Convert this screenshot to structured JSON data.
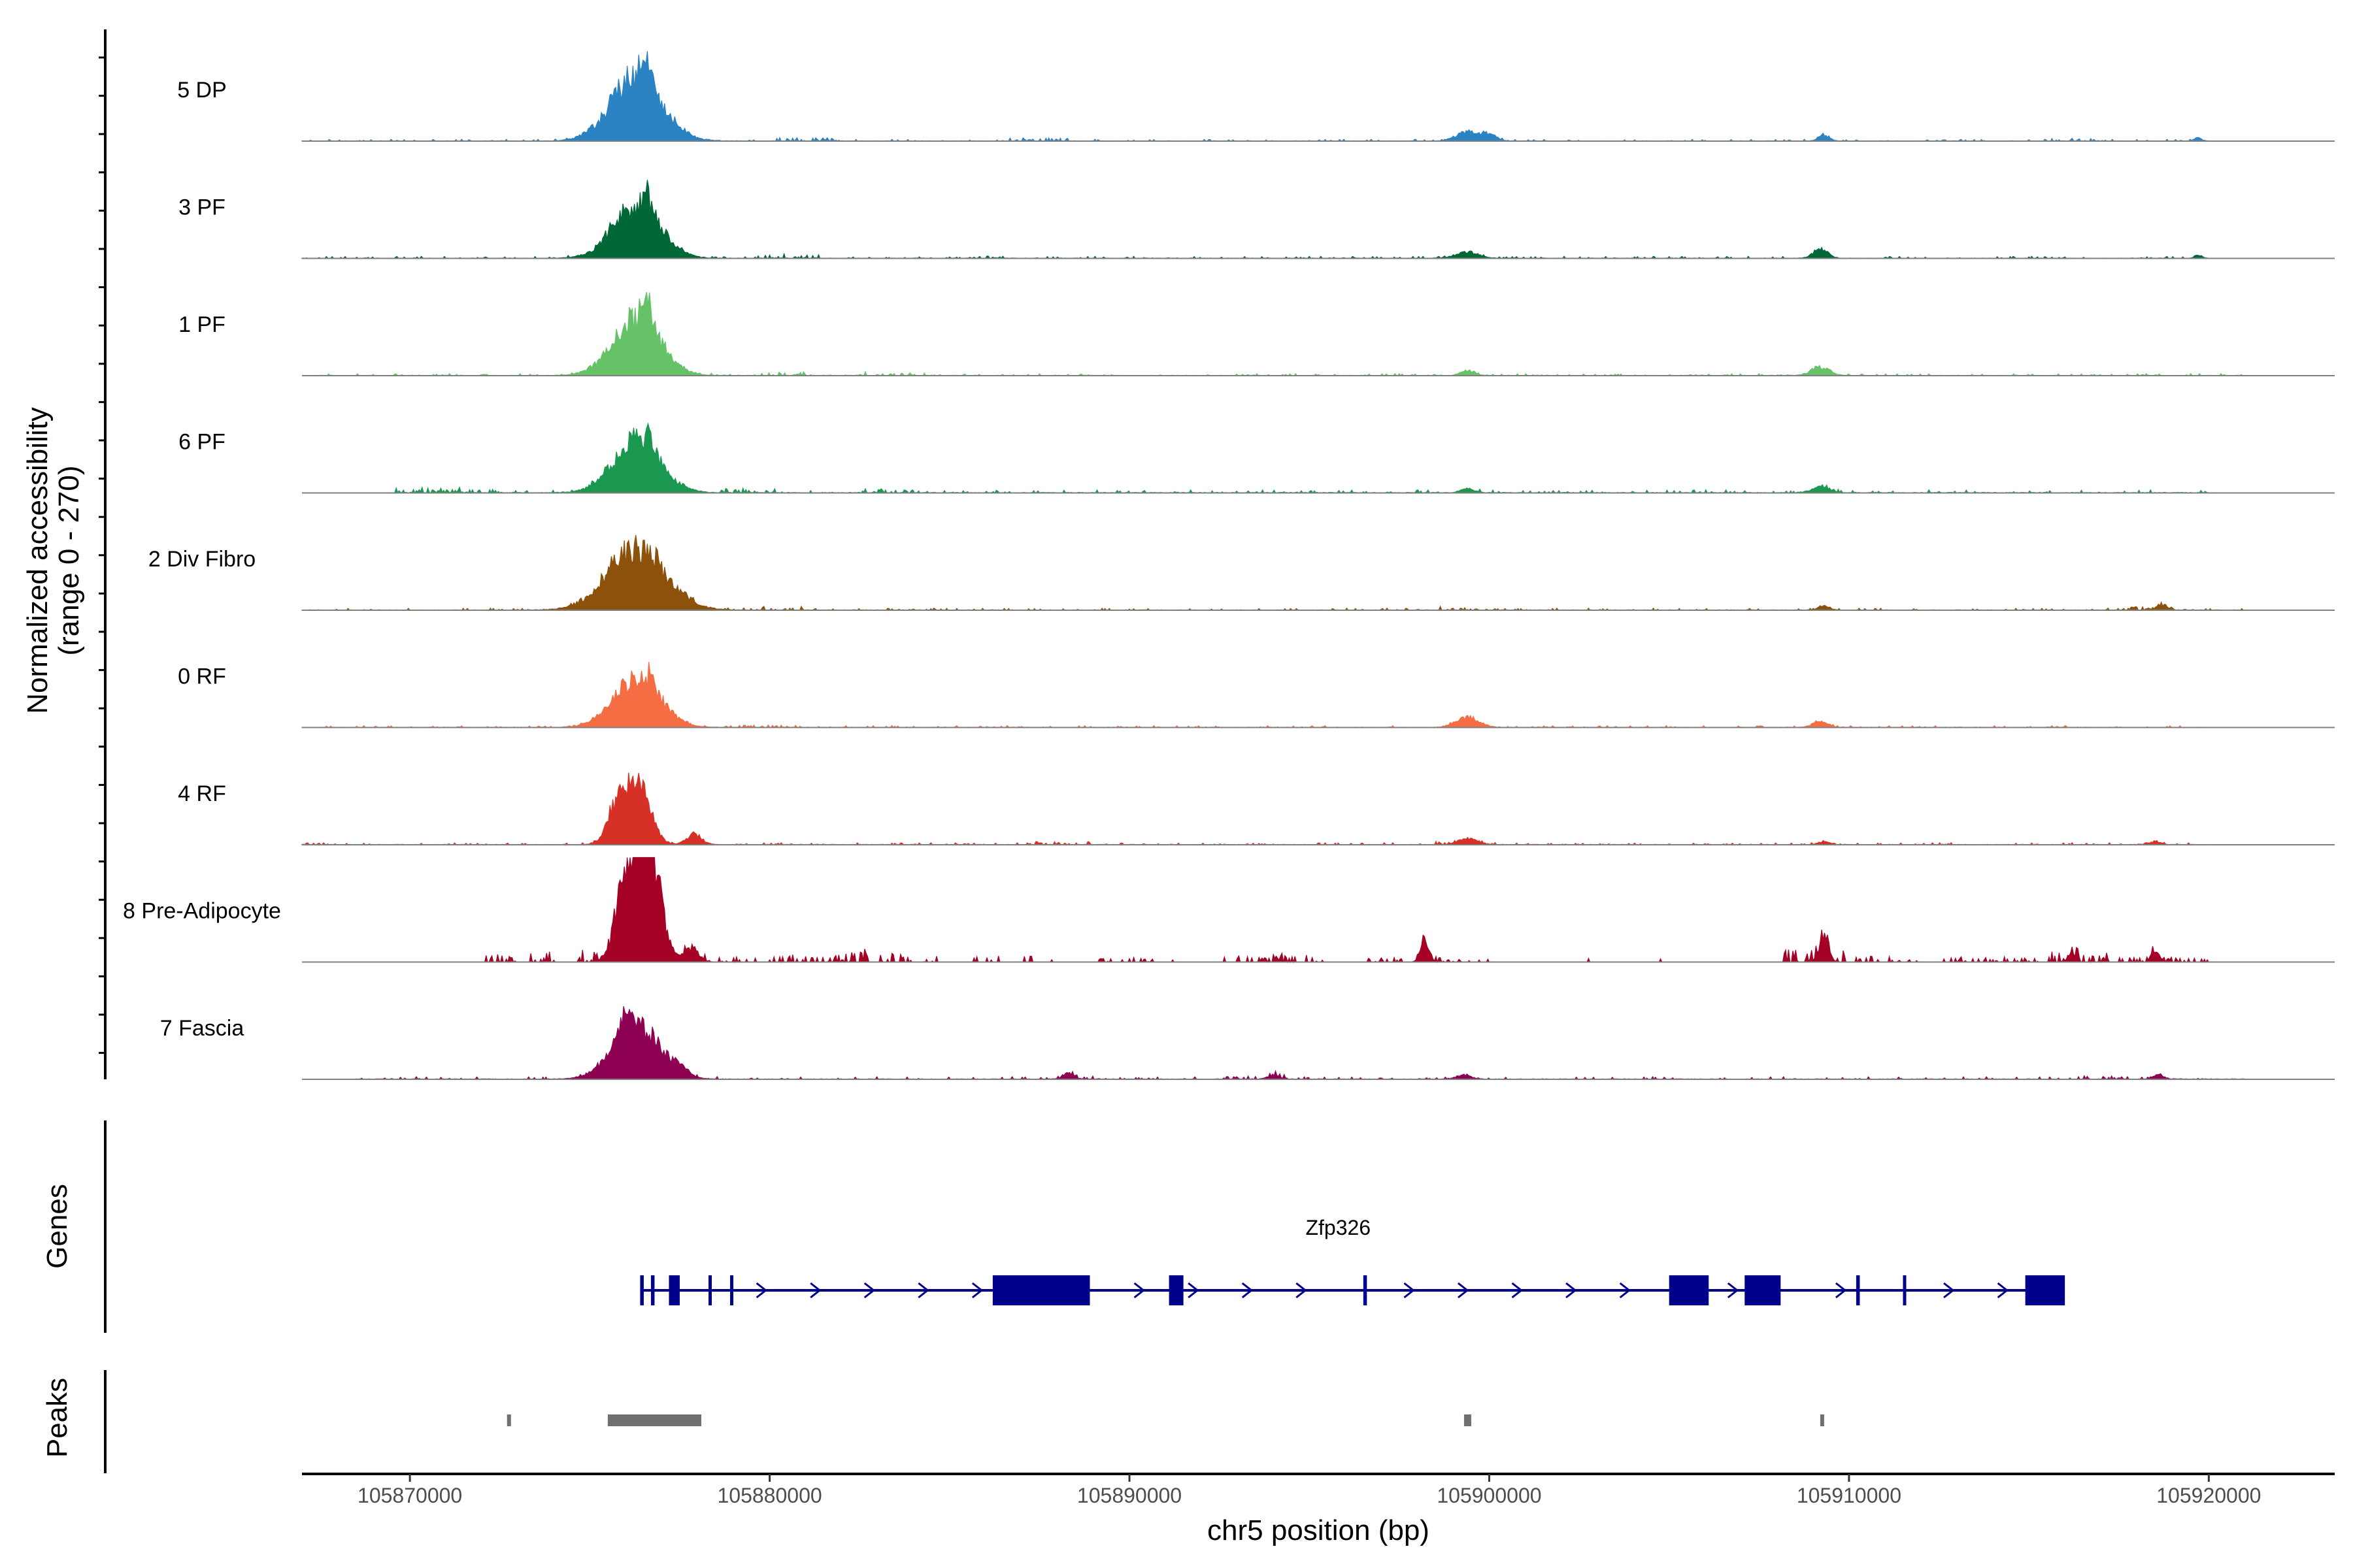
{
  "chart_data": {
    "type": "area",
    "region": {
      "chrom": "chr5",
      "start": 105867000,
      "end": 105923500
    },
    "y_axis_label": [
      "Normalized accessibility",
      "(range 0 - 270)"
    ],
    "x_axis_label": "chr5 position (bp)",
    "x_ticks": [
      105870000,
      105880000,
      105890000,
      105900000,
      105910000,
      105920000
    ],
    "y_range": [
      0,
      270
    ],
    "baseline_color": "#7f7f7f",
    "tracks": [
      {
        "name": "5 DP",
        "color": "#2b83c3",
        "data_extent": [
          105867000,
          105920000
        ],
        "noise": 0.018,
        "noise_clusters": [
          [
            105881000,
            0.03
          ],
          [
            105887500,
            0.03
          ],
          [
            105916500,
            0.025
          ]
        ],
        "peaks": [
          [
            105876300,
            700,
            0.62
          ],
          [
            105876550,
            120,
            0.25
          ],
          [
            105899400,
            300,
            0.09
          ],
          [
            105900000,
            200,
            0.06
          ],
          [
            105909300,
            150,
            0.06
          ],
          [
            105919700,
            100,
            0.03
          ]
        ]
      },
      {
        "name": "3 PF",
        "color": "#006837",
        "data_extent": [
          105867000,
          105920000
        ],
        "noise": 0.02,
        "noise_clusters": [
          [
            105880500,
            0.03
          ],
          [
            105886000,
            0.02
          ]
        ],
        "peaks": [
          [
            105876300,
            650,
            0.5
          ],
          [
            105876600,
            130,
            0.16
          ],
          [
            105899400,
            300,
            0.06
          ],
          [
            105909200,
            200,
            0.09
          ],
          [
            105919700,
            100,
            0.03
          ]
        ]
      },
      {
        "name": "1 PF",
        "color": "#66c266",
        "data_extent": [
          105867500,
          105921000
        ],
        "noise": 0.02,
        "noise_clusters": [
          [
            105880500,
            0.03
          ],
          [
            105883500,
            0.025
          ]
        ],
        "peaks": [
          [
            105876300,
            650,
            0.55
          ],
          [
            105876600,
            140,
            0.22
          ],
          [
            105899400,
            180,
            0.05
          ],
          [
            105909200,
            250,
            0.08
          ]
        ]
      },
      {
        "name": "6 PF",
        "color": "#1a9850",
        "data_extent": [
          105869500,
          105920000
        ],
        "noise": 0.03,
        "noise_clusters": [
          [
            105870500,
            0.05
          ],
          [
            105872000,
            0.03
          ],
          [
            105879500,
            0.04
          ],
          [
            105883500,
            0.03
          ]
        ],
        "peaks": [
          [
            105876300,
            650,
            0.5
          ],
          [
            105876700,
            150,
            0.12
          ],
          [
            105899400,
            180,
            0.04
          ],
          [
            105909200,
            250,
            0.05
          ]
        ]
      },
      {
        "name": "2 Div Fibro",
        "color": "#8c510a",
        "data_extent": [
          105867000,
          105921000
        ],
        "noise": 0.02,
        "noise_clusters": [
          [
            105880000,
            0.025
          ],
          [
            105899500,
            0.02
          ],
          [
            105918500,
            0.03
          ]
        ],
        "peaks": [
          [
            105876300,
            800,
            0.6
          ],
          [
            105909300,
            150,
            0.04
          ],
          [
            105918700,
            150,
            0.05
          ]
        ]
      },
      {
        "name": "0 RF",
        "color": "#f46d43",
        "data_extent": [
          105867000,
          105920000
        ],
        "noise": 0.018,
        "noise_clusters": [
          [
            105880000,
            0.02
          ]
        ],
        "peaks": [
          [
            105876300,
            650,
            0.45
          ],
          [
            105876700,
            140,
            0.13
          ],
          [
            105899400,
            300,
            0.1
          ],
          [
            105909200,
            200,
            0.06
          ]
        ]
      },
      {
        "name": "4 RF",
        "color": "#d73027",
        "data_extent": [
          105867000,
          105920000
        ],
        "noise": 0.02,
        "noise_clusters": [
          [
            105888000,
            0.03
          ],
          [
            105899400,
            0.03
          ]
        ],
        "peaks": [
          [
            105875800,
            280,
            0.42
          ],
          [
            105876400,
            300,
            0.55
          ],
          [
            105877900,
            200,
            0.1
          ],
          [
            105899400,
            250,
            0.06
          ],
          [
            105909300,
            150,
            0.03
          ],
          [
            105918500,
            150,
            0.03
          ]
        ]
      },
      {
        "name": "8 Pre-Adipocyte",
        "color": "#a50026",
        "data_extent": [
          105869000,
          105920000
        ],
        "noise": 0.0,
        "sparse": true,
        "noise_clusters": [
          [
            105873000,
            0.1
          ],
          [
            105875500,
            0.15
          ],
          [
            105878500,
            0.06
          ],
          [
            105881000,
            0.08
          ],
          [
            105882800,
            0.1
          ],
          [
            105884000,
            0.05
          ],
          [
            105886500,
            0.06
          ],
          [
            105890000,
            0.05
          ],
          [
            105893500,
            0.06
          ],
          [
            105894600,
            0.06
          ],
          [
            105897500,
            0.05
          ],
          [
            105899200,
            0.05
          ],
          [
            105909000,
            0.12
          ],
          [
            105911000,
            0.06
          ],
          [
            105913500,
            0.05
          ],
          [
            105915000,
            0.06
          ],
          [
            105916500,
            0.1
          ],
          [
            105918000,
            0.05
          ],
          [
            105919500,
            0.05
          ]
        ],
        "peaks": [
          [
            105876200,
            350,
            0.9
          ],
          [
            105876700,
            300,
            0.85
          ],
          [
            105875800,
            120,
            0.18
          ],
          [
            105877800,
            220,
            0.12
          ],
          [
            105898200,
            120,
            0.18
          ],
          [
            105909300,
            130,
            0.23
          ],
          [
            105916200,
            100,
            0.1
          ],
          [
            105918500,
            100,
            0.12
          ]
        ]
      },
      {
        "name": "7 Fascia",
        "color": "#8e0152",
        "data_extent": [
          105868500,
          105921000
        ],
        "noise": 0.025,
        "noise_clusters": [
          [
            105888500,
            0.03
          ],
          [
            105893500,
            0.03
          ],
          [
            105917000,
            0.03
          ]
        ],
        "peaks": [
          [
            105876300,
            650,
            0.5
          ],
          [
            105876000,
            150,
            0.25
          ],
          [
            105877500,
            180,
            0.07
          ],
          [
            105888300,
            150,
            0.05
          ],
          [
            105894000,
            150,
            0.04
          ],
          [
            105899300,
            200,
            0.04
          ],
          [
            105918600,
            150,
            0.04
          ]
        ]
      }
    ],
    "genes": {
      "label": "Genes",
      "color": "#00008b",
      "name": "Zfp326",
      "name_position": 105895800,
      "strand": "+",
      "transcript": [
        105876400,
        105915800
      ],
      "exons": [
        [
          105876400,
          105876500
        ],
        [
          105876700,
          105876800
        ],
        [
          105877200,
          105877500
        ],
        [
          105878300,
          105878350
        ],
        [
          105878900,
          105878950
        ],
        [
          105886200,
          105888900
        ],
        [
          105891100,
          105891500
        ],
        [
          105896500,
          105896600
        ],
        [
          105905000,
          105906100
        ],
        [
          105907100,
          105908100
        ],
        [
          105910200,
          105910300
        ],
        [
          105911500,
          105911560
        ],
        [
          105914900,
          105916000
        ]
      ]
    },
    "peaks_track": {
      "label": "Peaks",
      "color": "#6f6f6f",
      "intervals": [
        [
          105872700,
          105872800
        ],
        [
          105875500,
          105878100
        ],
        [
          105899300,
          105899500
        ],
        [
          105909200,
          105909300
        ]
      ]
    }
  }
}
